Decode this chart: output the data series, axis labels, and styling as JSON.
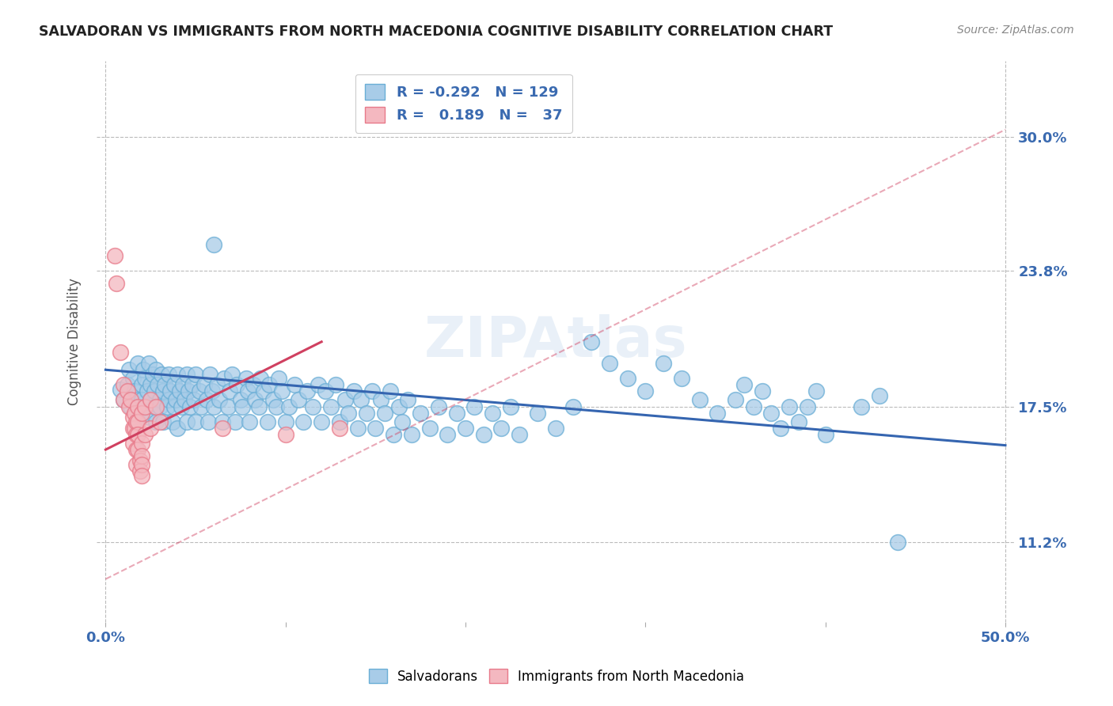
{
  "title": "SALVADORAN VS IMMIGRANTS FROM NORTH MACEDONIA COGNITIVE DISABILITY CORRELATION CHART",
  "source": "Source: ZipAtlas.com",
  "ylabel": "Cognitive Disability",
  "ytick_labels": [
    "30.0%",
    "23.8%",
    "17.5%",
    "11.2%"
  ],
  "ytick_values": [
    0.3,
    0.238,
    0.175,
    0.112
  ],
  "xlim": [
    -0.005,
    0.505
  ],
  "ylim": [
    0.075,
    0.335
  ],
  "color_blue": "#a8cce8",
  "color_blue_edge": "#6aaed6",
  "color_pink": "#f4b8c0",
  "color_pink_edge": "#e87a8a",
  "color_trend_blue": "#3565b0",
  "color_trend_pink": "#d04060",
  "watermark": "ZIPAtlas",
  "blue_trend_x": [
    0.0,
    0.5
  ],
  "blue_trend_y": [
    0.192,
    0.157
  ],
  "pink_trend_x": [
    0.0,
    0.12
  ],
  "pink_trend_y": [
    0.155,
    0.205
  ],
  "blue_scatter": [
    [
      0.008,
      0.183
    ],
    [
      0.01,
      0.178
    ],
    [
      0.012,
      0.185
    ],
    [
      0.013,
      0.192
    ],
    [
      0.014,
      0.175
    ],
    [
      0.015,
      0.188
    ],
    [
      0.016,
      0.182
    ],
    [
      0.017,
      0.178
    ],
    [
      0.018,
      0.195
    ],
    [
      0.019,
      0.17
    ],
    [
      0.02,
      0.185
    ],
    [
      0.02,
      0.178
    ],
    [
      0.021,
      0.192
    ],
    [
      0.022,
      0.175
    ],
    [
      0.022,
      0.188
    ],
    [
      0.023,
      0.182
    ],
    [
      0.024,
      0.17
    ],
    [
      0.024,
      0.195
    ],
    [
      0.025,
      0.185
    ],
    [
      0.025,
      0.178
    ],
    [
      0.026,
      0.19
    ],
    [
      0.027,
      0.175
    ],
    [
      0.027,
      0.182
    ],
    [
      0.028,
      0.192
    ],
    [
      0.028,
      0.168
    ],
    [
      0.029,
      0.185
    ],
    [
      0.03,
      0.178
    ],
    [
      0.03,
      0.175
    ],
    [
      0.031,
      0.19
    ],
    [
      0.032,
      0.182
    ],
    [
      0.032,
      0.168
    ],
    [
      0.033,
      0.185
    ],
    [
      0.034,
      0.175
    ],
    [
      0.035,
      0.178
    ],
    [
      0.035,
      0.19
    ],
    [
      0.036,
      0.182
    ],
    [
      0.037,
      0.168
    ],
    [
      0.038,
      0.185
    ],
    [
      0.038,
      0.175
    ],
    [
      0.039,
      0.178
    ],
    [
      0.04,
      0.19
    ],
    [
      0.04,
      0.165
    ],
    [
      0.041,
      0.182
    ],
    [
      0.042,
      0.175
    ],
    [
      0.043,
      0.185
    ],
    [
      0.044,
      0.178
    ],
    [
      0.045,
      0.168
    ],
    [
      0.045,
      0.19
    ],
    [
      0.046,
      0.182
    ],
    [
      0.047,
      0.175
    ],
    [
      0.048,
      0.185
    ],
    [
      0.049,
      0.178
    ],
    [
      0.05,
      0.168
    ],
    [
      0.05,
      0.19
    ],
    [
      0.052,
      0.182
    ],
    [
      0.053,
      0.175
    ],
    [
      0.055,
      0.185
    ],
    [
      0.056,
      0.178
    ],
    [
      0.057,
      0.168
    ],
    [
      0.058,
      0.19
    ],
    [
      0.059,
      0.182
    ],
    [
      0.06,
      0.175
    ],
    [
      0.062,
      0.185
    ],
    [
      0.063,
      0.178
    ],
    [
      0.065,
      0.168
    ],
    [
      0.066,
      0.188
    ],
    [
      0.068,
      0.175
    ],
    [
      0.069,
      0.182
    ],
    [
      0.07,
      0.19
    ],
    [
      0.072,
      0.168
    ],
    [
      0.073,
      0.185
    ],
    [
      0.075,
      0.178
    ],
    [
      0.076,
      0.175
    ],
    [
      0.078,
      0.188
    ],
    [
      0.079,
      0.182
    ],
    [
      0.08,
      0.168
    ],
    [
      0.082,
      0.185
    ],
    [
      0.083,
      0.178
    ],
    [
      0.085,
      0.175
    ],
    [
      0.086,
      0.188
    ],
    [
      0.088,
      0.182
    ],
    [
      0.09,
      0.168
    ],
    [
      0.091,
      0.185
    ],
    [
      0.093,
      0.178
    ],
    [
      0.095,
      0.175
    ],
    [
      0.096,
      0.188
    ],
    [
      0.098,
      0.182
    ],
    [
      0.1,
      0.168
    ],
    [
      0.102,
      0.175
    ],
    [
      0.105,
      0.185
    ],
    [
      0.107,
      0.178
    ],
    [
      0.11,
      0.168
    ],
    [
      0.112,
      0.182
    ],
    [
      0.115,
      0.175
    ],
    [
      0.118,
      0.185
    ],
    [
      0.12,
      0.168
    ],
    [
      0.122,
      0.182
    ],
    [
      0.125,
      0.175
    ],
    [
      0.128,
      0.185
    ],
    [
      0.13,
      0.168
    ],
    [
      0.133,
      0.178
    ],
    [
      0.135,
      0.172
    ],
    [
      0.138,
      0.182
    ],
    [
      0.14,
      0.165
    ],
    [
      0.142,
      0.178
    ],
    [
      0.145,
      0.172
    ],
    [
      0.148,
      0.182
    ],
    [
      0.15,
      0.165
    ],
    [
      0.153,
      0.178
    ],
    [
      0.155,
      0.172
    ],
    [
      0.158,
      0.182
    ],
    [
      0.16,
      0.162
    ],
    [
      0.163,
      0.175
    ],
    [
      0.165,
      0.168
    ],
    [
      0.168,
      0.178
    ],
    [
      0.17,
      0.162
    ],
    [
      0.175,
      0.172
    ],
    [
      0.18,
      0.165
    ],
    [
      0.185,
      0.175
    ],
    [
      0.19,
      0.162
    ],
    [
      0.195,
      0.172
    ],
    [
      0.2,
      0.165
    ],
    [
      0.205,
      0.175
    ],
    [
      0.21,
      0.162
    ],
    [
      0.215,
      0.172
    ],
    [
      0.22,
      0.165
    ],
    [
      0.225,
      0.175
    ],
    [
      0.23,
      0.162
    ],
    [
      0.24,
      0.172
    ],
    [
      0.25,
      0.165
    ],
    [
      0.26,
      0.175
    ],
    [
      0.27,
      0.205
    ],
    [
      0.28,
      0.195
    ],
    [
      0.29,
      0.188
    ],
    [
      0.3,
      0.182
    ],
    [
      0.31,
      0.195
    ],
    [
      0.32,
      0.188
    ],
    [
      0.33,
      0.178
    ],
    [
      0.34,
      0.172
    ],
    [
      0.35,
      0.178
    ],
    [
      0.355,
      0.185
    ],
    [
      0.36,
      0.175
    ],
    [
      0.365,
      0.182
    ],
    [
      0.37,
      0.172
    ],
    [
      0.375,
      0.165
    ],
    [
      0.38,
      0.175
    ],
    [
      0.385,
      0.168
    ],
    [
      0.39,
      0.175
    ],
    [
      0.395,
      0.182
    ],
    [
      0.06,
      0.25
    ],
    [
      0.4,
      0.162
    ],
    [
      0.42,
      0.175
    ],
    [
      0.43,
      0.18
    ],
    [
      0.44,
      0.112
    ]
  ],
  "pink_scatter": [
    [
      0.005,
      0.245
    ],
    [
      0.006,
      0.232
    ],
    [
      0.008,
      0.2
    ],
    [
      0.01,
      0.185
    ],
    [
      0.01,
      0.178
    ],
    [
      0.012,
      0.182
    ],
    [
      0.013,
      0.175
    ],
    [
      0.014,
      0.178
    ],
    [
      0.015,
      0.17
    ],
    [
      0.015,
      0.165
    ],
    [
      0.015,
      0.158
    ],
    [
      0.016,
      0.172
    ],
    [
      0.016,
      0.165
    ],
    [
      0.017,
      0.168
    ],
    [
      0.017,
      0.162
    ],
    [
      0.017,
      0.155
    ],
    [
      0.017,
      0.148
    ],
    [
      0.018,
      0.175
    ],
    [
      0.018,
      0.168
    ],
    [
      0.018,
      0.162
    ],
    [
      0.018,
      0.155
    ],
    [
      0.019,
      0.15
    ],
    [
      0.019,
      0.145
    ],
    [
      0.02,
      0.172
    ],
    [
      0.02,
      0.158
    ],
    [
      0.02,
      0.152
    ],
    [
      0.02,
      0.148
    ],
    [
      0.02,
      0.143
    ],
    [
      0.022,
      0.175
    ],
    [
      0.022,
      0.162
    ],
    [
      0.025,
      0.178
    ],
    [
      0.025,
      0.165
    ],
    [
      0.028,
      0.175
    ],
    [
      0.03,
      0.168
    ],
    [
      0.065,
      0.165
    ],
    [
      0.1,
      0.162
    ],
    [
      0.13,
      0.165
    ]
  ]
}
